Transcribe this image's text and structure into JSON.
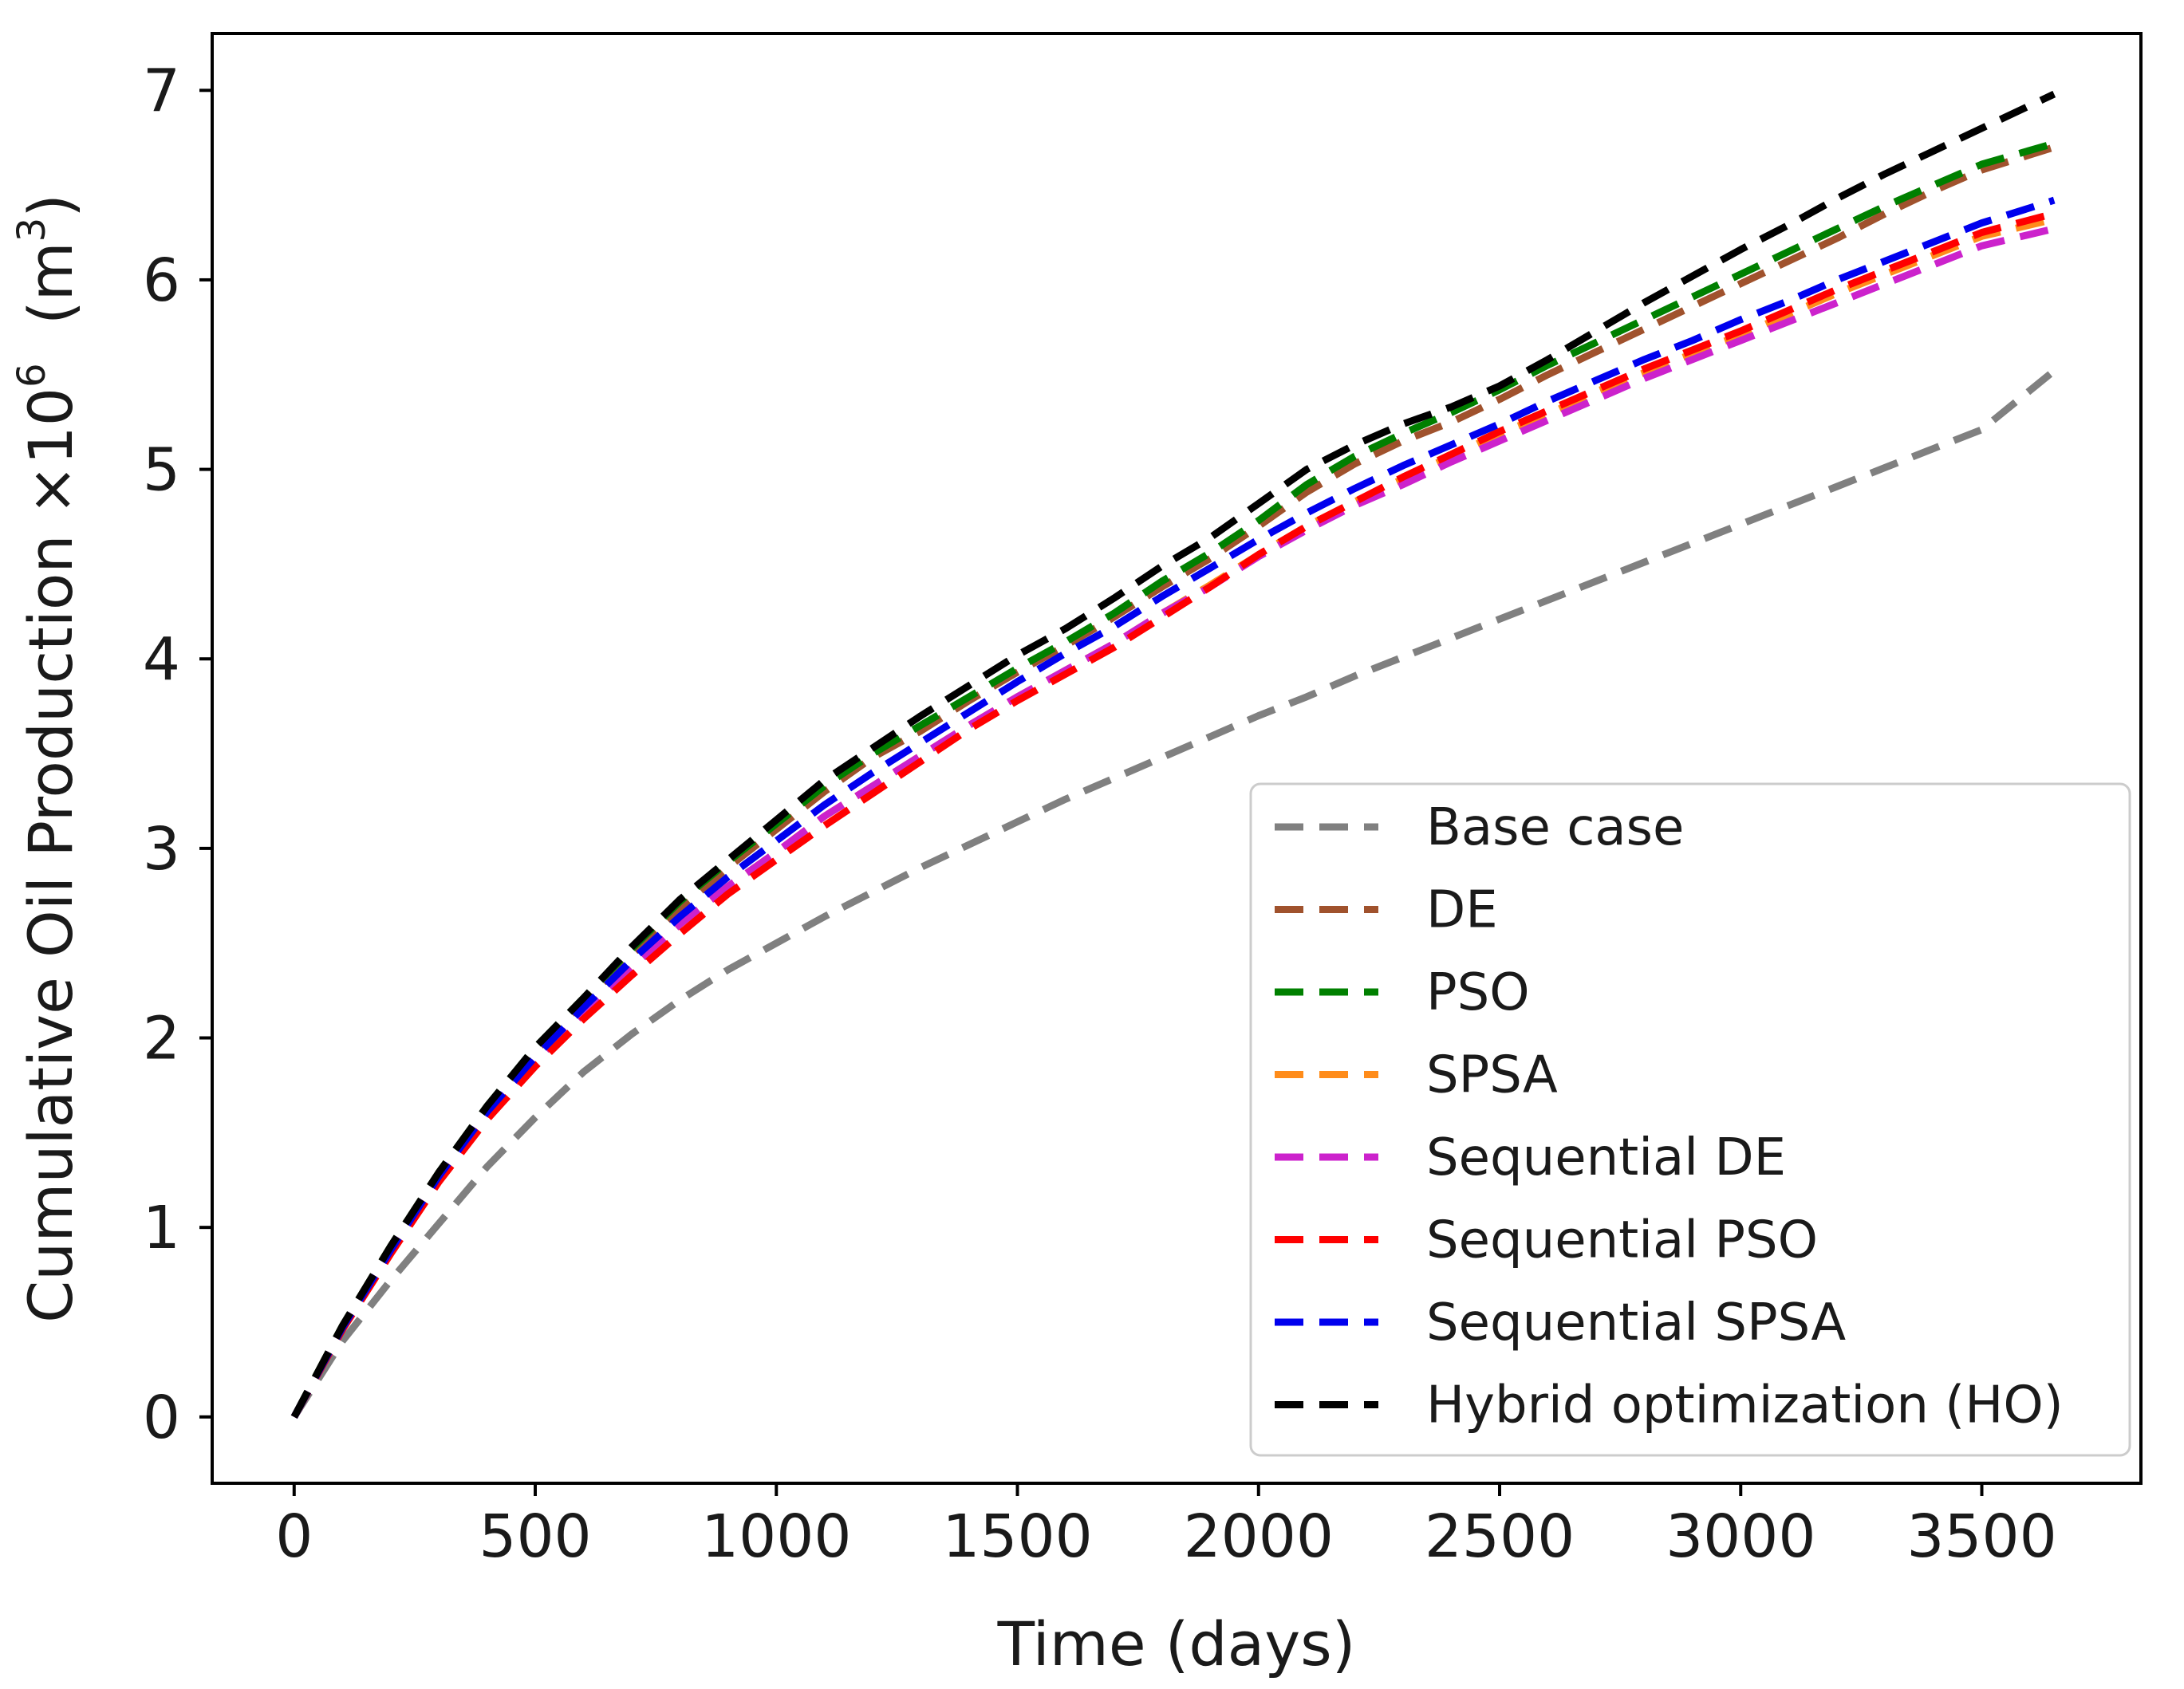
{
  "chart_data": {
    "type": "line",
    "xlabel": "Time (days)",
    "ylabel": {
      "main": "Cumulative Oil Production ×10",
      "exponent": "6",
      "unit_open": "  (m",
      "unit_exponent": "3",
      "unit_close": ")"
    },
    "xlim": [
      -170,
      3830
    ],
    "ylim": [
      -0.35,
      7.3
    ],
    "xticks": [
      0,
      500,
      1000,
      1500,
      2000,
      2500,
      3000,
      3500
    ],
    "xtick_labels": [
      "0",
      "500",
      "1000",
      "1500",
      "2000",
      "2500",
      "3000",
      "3500"
    ],
    "yticks": [
      0,
      1,
      2,
      3,
      4,
      5,
      6,
      7
    ],
    "ytick_labels": [
      "0",
      "1",
      "2",
      "3",
      "4",
      "5",
      "6",
      "7"
    ],
    "grid": false,
    "legend_position": "lower-right",
    "x": [
      0,
      100,
      200,
      300,
      400,
      500,
      600,
      700,
      800,
      900,
      1000,
      1100,
      1200,
      1300,
      1400,
      1500,
      1600,
      1700,
      1800,
      1900,
      2000,
      2100,
      2200,
      2300,
      2400,
      2500,
      2600,
      2700,
      2800,
      2900,
      3000,
      3100,
      3200,
      3300,
      3400,
      3500,
      3650
    ],
    "series": [
      {
        "name": "Base case",
        "color": "#808080",
        "values": [
          0,
          0.4,
          0.72,
          1.02,
          1.32,
          1.58,
          1.82,
          2.02,
          2.2,
          2.36,
          2.5,
          2.64,
          2.77,
          2.9,
          3.02,
          3.14,
          3.26,
          3.37,
          3.48,
          3.59,
          3.7,
          3.8,
          3.91,
          4.01,
          4.11,
          4.21,
          4.31,
          4.41,
          4.51,
          4.61,
          4.71,
          4.81,
          4.91,
          5.01,
          5.11,
          5.21,
          5.52
        ]
      },
      {
        "name": "DE",
        "color": "#a0522d",
        "values": [
          0,
          0.48,
          0.9,
          1.29,
          1.63,
          1.93,
          2.19,
          2.44,
          2.68,
          2.9,
          3.1,
          3.3,
          3.48,
          3.62,
          3.78,
          3.93,
          4.07,
          4.22,
          4.38,
          4.53,
          4.7,
          4.88,
          5.03,
          5.15,
          5.25,
          5.37,
          5.5,
          5.62,
          5.74,
          5.86,
          5.98,
          6.1,
          6.22,
          6.35,
          6.47,
          6.58,
          6.7
        ]
      },
      {
        "name": "PSO",
        "color": "#008000",
        "values": [
          0,
          0.48,
          0.9,
          1.29,
          1.64,
          1.95,
          2.21,
          2.47,
          2.72,
          2.93,
          3.13,
          3.33,
          3.5,
          3.65,
          3.8,
          3.95,
          4.09,
          4.24,
          4.41,
          4.56,
          4.73,
          4.92,
          5.07,
          5.19,
          5.3,
          5.42,
          5.55,
          5.67,
          5.79,
          5.91,
          6.03,
          6.15,
          6.27,
          6.39,
          6.5,
          6.61,
          6.72
        ]
      },
      {
        "name": "SPSA",
        "color": "#ff8c1a",
        "values": [
          0,
          0.47,
          0.88,
          1.26,
          1.6,
          1.88,
          2.13,
          2.37,
          2.6,
          2.8,
          2.98,
          3.17,
          3.33,
          3.49,
          3.65,
          3.8,
          3.94,
          4.08,
          4.24,
          4.39,
          4.55,
          4.7,
          4.83,
          4.95,
          5.07,
          5.19,
          5.29,
          5.41,
          5.51,
          5.61,
          5.71,
          5.82,
          5.93,
          6.03,
          6.13,
          6.23,
          6.32
        ]
      },
      {
        "name": "Sequential DE",
        "color": "#cc22cc",
        "values": [
          0,
          0.47,
          0.88,
          1.26,
          1.6,
          1.88,
          2.13,
          2.37,
          2.6,
          2.8,
          2.98,
          3.17,
          3.33,
          3.49,
          3.65,
          3.8,
          3.94,
          4.08,
          4.24,
          4.38,
          4.54,
          4.68,
          4.81,
          4.92,
          5.04,
          5.15,
          5.26,
          5.37,
          5.48,
          5.58,
          5.68,
          5.78,
          5.88,
          5.98,
          6.08,
          6.18,
          6.27
        ]
      },
      {
        "name": "Sequential PSO",
        "color": "#ff0000",
        "values": [
          0,
          0.46,
          0.86,
          1.24,
          1.57,
          1.85,
          2.1,
          2.33,
          2.55,
          2.76,
          2.94,
          3.12,
          3.29,
          3.46,
          3.63,
          3.78,
          3.92,
          4.06,
          4.22,
          4.38,
          4.55,
          4.7,
          4.83,
          4.96,
          5.08,
          5.2,
          5.31,
          5.42,
          5.53,
          5.63,
          5.73,
          5.84,
          5.95,
          6.05,
          6.15,
          6.25,
          6.35
        ]
      },
      {
        "name": "Sequential SPSA",
        "color": "#0000ee",
        "values": [
          0,
          0.47,
          0.88,
          1.27,
          1.61,
          1.9,
          2.16,
          2.41,
          2.64,
          2.85,
          3.04,
          3.23,
          3.4,
          3.56,
          3.72,
          3.88,
          4.03,
          4.17,
          4.33,
          4.48,
          4.63,
          4.77,
          4.9,
          5.02,
          5.13,
          5.24,
          5.36,
          5.47,
          5.58,
          5.68,
          5.79,
          5.89,
          6.0,
          6.1,
          6.2,
          6.3,
          6.42
        ]
      },
      {
        "name": "Hybrid optimization (HO)",
        "color": "#000000",
        "values": [
          0,
          0.48,
          0.9,
          1.29,
          1.64,
          1.95,
          2.21,
          2.48,
          2.73,
          2.94,
          3.15,
          3.36,
          3.53,
          3.7,
          3.86,
          4.02,
          4.16,
          4.32,
          4.49,
          4.64,
          4.82,
          5.0,
          5.13,
          5.24,
          5.33,
          5.44,
          5.58,
          5.73,
          5.88,
          6.02,
          6.16,
          6.29,
          6.43,
          6.56,
          6.68,
          6.8,
          6.98
        ]
      }
    ]
  }
}
